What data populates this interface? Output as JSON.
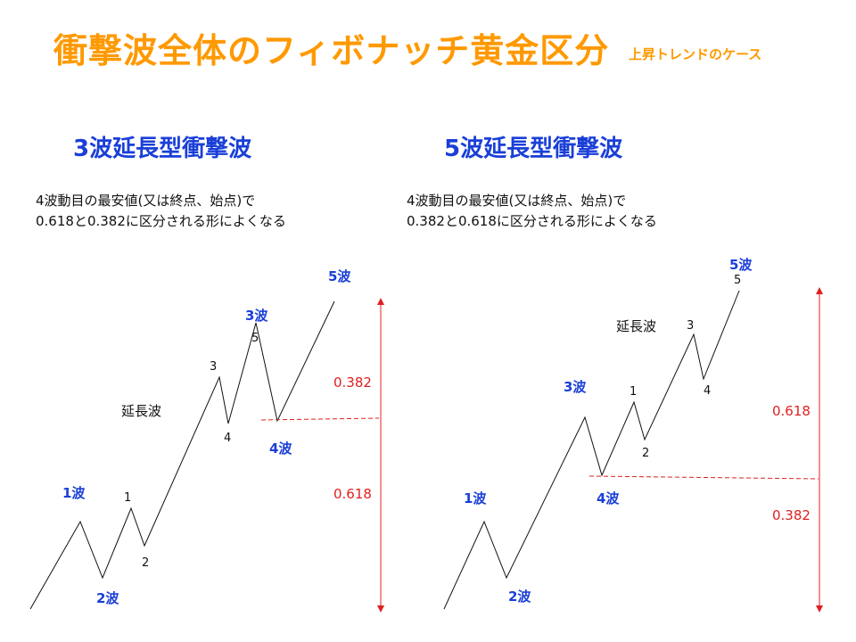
{
  "title": "衝撃波全体のフィボナッチ黄金区分",
  "subtitle": "上昇トレンドのケース",
  "colors": {
    "title": "#ff9900",
    "heading": "#1a3fd8",
    "ratio": "#e02020"
  },
  "left": {
    "heading": "3波延長型衝撃波",
    "desc_line1": "4波動目の最安値(又は終点、始点)で",
    "desc_line2": "0.618と0.382に区分される形によくなる",
    "labels": {
      "w1": "1波",
      "w2": "2波",
      "w3": "3波",
      "w4": "4波",
      "w5": "5波",
      "s1": "1",
      "s2": "2",
      "s3": "3",
      "s4": "4",
      "s5": "5",
      "extension": "延長波",
      "ratio_top": "0.382",
      "ratio_bottom": "0.618"
    }
  },
  "right": {
    "heading": "5波延長型衝撃波",
    "desc_line1": "4波動目の最安値(又は終点、始点)で",
    "desc_line2": "0.382と0.618に区分される形によくなる",
    "labels": {
      "w1": "1波",
      "w2": "2波",
      "w3": "3波",
      "w4": "4波",
      "w5": "5波",
      "s1": "1",
      "s2": "2",
      "s3": "3",
      "s4": "4",
      "s5": "5",
      "extension": "延長波",
      "ratio_top": "0.618",
      "ratio_bottom": "0.382"
    }
  }
}
